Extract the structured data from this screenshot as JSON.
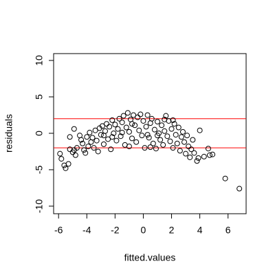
{
  "chart_data": {
    "type": "scatter",
    "x_label": "fitted.values",
    "y_label": "residuals",
    "x": [
      -5.9,
      -5.8,
      -5.6,
      -5.5,
      -5.3,
      -5.2,
      -5.2,
      -5.0,
      -4.9,
      -4.8,
      -4.9,
      -4.7,
      -4.5,
      -4.4,
      -4.3,
      -4.2,
      -4.1,
      -4.0,
      -3.9,
      -3.8,
      -3.7,
      -3.6,
      -3.5,
      -3.4,
      -3.3,
      -3.2,
      -3.1,
      -3.0,
      -2.9,
      -2.8,
      -2.7,
      -2.6,
      -2.5,
      -2.4,
      -2.3,
      -2.2,
      -2.1,
      -2.0,
      -1.9,
      -1.8,
      -1.7,
      -1.6,
      -1.5,
      -1.4,
      -1.3,
      -1.2,
      -1.1,
      -1.0,
      -0.9,
      -0.8,
      -0.7,
      -0.6,
      -0.5,
      -0.4,
      -0.3,
      -0.2,
      -0.1,
      0.0,
      0.1,
      0.2,
      0.3,
      0.4,
      0.5,
      0.6,
      0.7,
      0.8,
      0.9,
      1.0,
      1.1,
      1.2,
      1.3,
      1.4,
      1.5,
      1.6,
      1.7,
      1.8,
      1.9,
      2.0,
      2.1,
      2.2,
      2.3,
      2.4,
      2.5,
      2.6,
      2.7,
      2.8,
      2.9,
      3.0,
      3.1,
      3.2,
      3.3,
      3.4,
      3.5,
      3.6,
      3.8,
      3.9,
      4.0,
      4.3,
      4.6,
      4.7,
      4.9,
      5.8,
      6.8,
      -2.2,
      -1.5,
      -0.8,
      0.3,
      1.0,
      -1.0,
      0.5,
      -2.8,
      1.5,
      2.1
    ],
    "y": [
      -2.8,
      -3.5,
      -4.4,
      -4.8,
      -4.2,
      -2.2,
      -0.5,
      -2.6,
      -2.3,
      -3.0,
      0.6,
      -2.0,
      -0.3,
      -0.9,
      -1.4,
      -2.3,
      -2.7,
      -0.5,
      -1.8,
      0.1,
      -1.2,
      -0.6,
      -2.0,
      0.4,
      -1.0,
      -2.5,
      0.7,
      -0.2,
      1.0,
      -1.5,
      0.3,
      1.3,
      -0.8,
      0.9,
      -2.2,
      1.8,
      0.0,
      1.2,
      -1.0,
      0.6,
      2.0,
      -0.4,
      1.5,
      2.4,
      -1.6,
      0.8,
      2.8,
      0.2,
      1.9,
      -0.7,
      2.5,
      1.1,
      -1.2,
      2.2,
      0.4,
      2.6,
      -0.3,
      1.7,
      -2.0,
      0.9,
      2.5,
      -0.6,
      1.4,
      2.0,
      -1.4,
      0.5,
      -2.1,
      1.6,
      0.0,
      -0.9,
      1.1,
      -1.6,
      0.3,
      2.4,
      -0.4,
      1.7,
      -1.1,
      0.6,
      -2.0,
      1.3,
      -0.2,
      -1.4,
      0.8,
      -2.4,
      -0.5,
      0.2,
      -1.2,
      -2.8,
      -0.3,
      -1.8,
      -3.3,
      -2.2,
      -0.9,
      -2.7,
      -3.8,
      -3.4,
      0.4,
      -3.2,
      -2.1,
      -3.0,
      -2.9,
      -6.2,
      -7.6,
      -0.5,
      0.1,
      1.3,
      -0.2,
      -0.3,
      -1.8,
      -1.9,
      -0.3,
      1.9,
      1.8
    ],
    "color": "#000000",
    "xlim": [
      -6.35,
      7.28
    ],
    "ylim": [
      -11.04,
      10.94
    ],
    "xticks": [
      -6,
      -4,
      -2,
      0,
      2,
      4,
      6
    ],
    "yticks": [
      -10,
      -5,
      0,
      5,
      10
    ],
    "hlines": [
      2,
      -2
    ],
    "hline_color": "#ff0000"
  }
}
